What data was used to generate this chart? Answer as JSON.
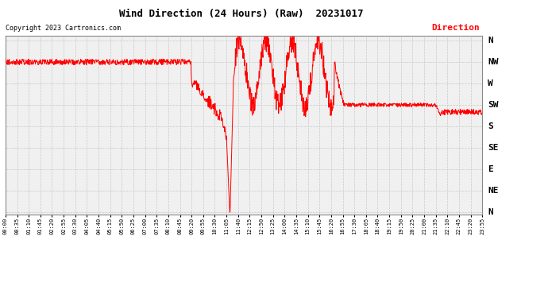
{
  "title": "Wind Direction (24 Hours) (Raw)  20231017",
  "copyright": "Copyright 2023 Cartronics.com",
  "legend_label": "Direction",
  "line_color": "#ff0000",
  "grid_color": "#c8c8c8",
  "background_color": "#ffffff",
  "plot_bg_color": "#f0f0f0",
  "y_labels": [
    "N",
    "NW",
    "W",
    "SW",
    "S",
    "SE",
    "E",
    "NE",
    "N"
  ],
  "ytick_positions": [
    360,
    315,
    270,
    225,
    180,
    135,
    90,
    45,
    0
  ],
  "x_tick_labels": [
    "00:00",
    "00:35",
    "01:10",
    "01:45",
    "02:20",
    "02:55",
    "03:30",
    "04:05",
    "04:40",
    "05:15",
    "05:50",
    "06:25",
    "07:00",
    "07:35",
    "08:10",
    "08:45",
    "09:20",
    "09:55",
    "10:30",
    "11:05",
    "11:40",
    "12:15",
    "12:50",
    "13:25",
    "14:00",
    "14:35",
    "15:10",
    "15:45",
    "16:20",
    "16:55",
    "17:30",
    "18:05",
    "18:40",
    "19:15",
    "19:50",
    "20:25",
    "21:00",
    "21:35",
    "22:10",
    "22:45",
    "23:20",
    "23:55"
  ]
}
